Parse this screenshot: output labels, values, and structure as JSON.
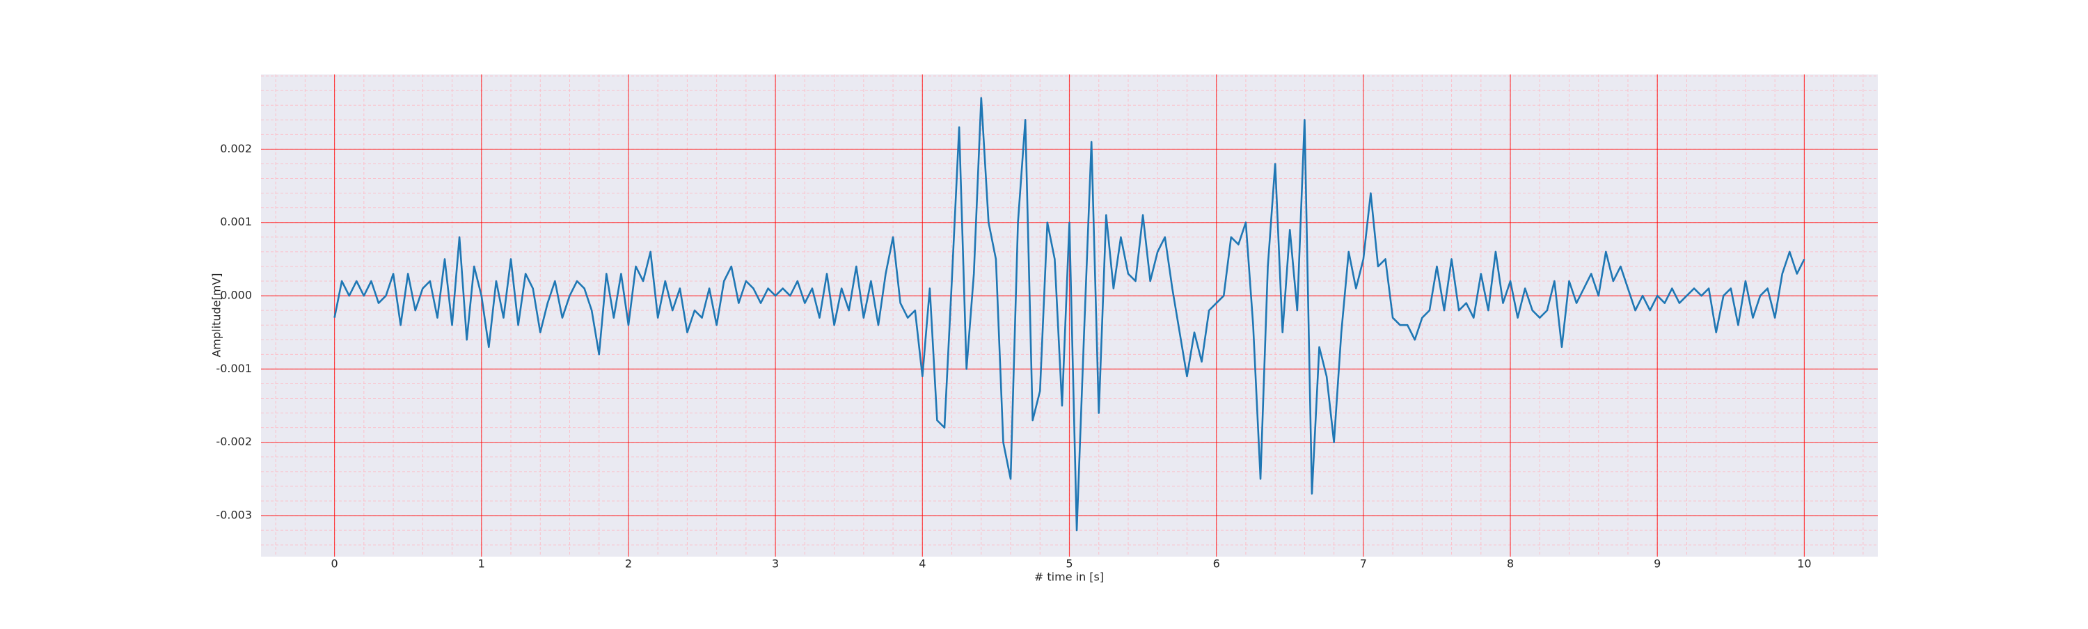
{
  "chart_data": {
    "type": "line",
    "xlabel": "# time in [s]",
    "ylabel": "Amplitude[mV]",
    "color": "#1f77b4",
    "grid": true,
    "minor_grid": true,
    "xlim": [
      -0.5,
      10.5
    ],
    "ylim": [
      -0.00356,
      0.00302
    ],
    "xticks": [
      0,
      1,
      2,
      3,
      4,
      5,
      6,
      7,
      8,
      9,
      10
    ],
    "yticks": [
      -0.003,
      -0.002,
      -0.001,
      {
        "value": 0,
        "label": "0.000"
      },
      0.001,
      0.002
    ],
    "x": [
      0,
      0.05,
      0.1,
      0.15,
      0.2,
      0.25,
      0.3,
      0.35,
      0.4,
      0.45,
      0.5,
      0.55,
      0.6,
      0.65,
      0.7,
      0.75,
      0.8,
      0.85,
      0.9,
      0.95,
      1,
      1.05,
      1.1,
      1.15,
      1.2,
      1.25,
      1.3,
      1.35,
      1.4,
      1.45,
      1.5,
      1.55,
      1.6,
      1.65,
      1.7,
      1.75,
      1.8,
      1.85,
      1.9,
      1.95,
      2,
      2.05,
      2.1,
      2.15,
      2.2,
      2.25,
      2.3,
      2.35,
      2.4,
      2.45,
      2.5,
      2.55,
      2.6,
      2.65,
      2.7,
      2.75,
      2.8,
      2.85,
      2.9,
      2.95,
      3,
      3.05,
      3.1,
      3.15,
      3.2,
      3.25,
      3.3,
      3.35,
      3.4,
      3.45,
      3.5,
      3.55,
      3.6,
      3.65,
      3.7,
      3.75,
      3.8,
      3.85,
      3.9,
      3.95,
      4,
      4.05,
      4.1,
      4.15,
      4.2,
      4.25,
      4.3,
      4.35,
      4.4,
      4.45,
      4.5,
      4.55,
      4.6,
      4.65,
      4.7,
      4.75,
      4.8,
      4.85,
      4.9,
      4.95,
      5,
      5.05,
      5.1,
      5.15,
      5.2,
      5.25,
      5.3,
      5.35,
      5.4,
      5.45,
      5.5,
      5.55,
      5.6,
      5.65,
      5.7,
      5.75,
      5.8,
      5.85,
      5.9,
      5.95,
      6,
      6.05,
      6.1,
      6.15,
      6.2,
      6.25,
      6.3,
      6.35,
      6.4,
      6.45,
      6.5,
      6.55,
      6.6,
      6.65,
      6.7,
      6.75,
      6.8,
      6.85,
      6.9,
      6.95,
      7,
      7.05,
      7.1,
      7.15,
      7.2,
      7.25,
      7.3,
      7.35,
      7.4,
      7.45,
      7.5,
      7.55,
      7.6,
      7.65,
      7.7,
      7.75,
      7.8,
      7.85,
      7.9,
      7.95,
      8,
      8.05,
      8.1,
      8.15,
      8.2,
      8.25,
      8.3,
      8.35,
      8.4,
      8.45,
      8.5,
      8.55,
      8.6,
      8.65,
      8.7,
      8.75,
      8.8,
      8.85,
      8.9,
      8.95,
      9,
      9.05,
      9.1,
      9.15,
      9.2,
      9.25,
      9.3,
      9.35,
      9.4,
      9.45,
      9.5,
      9.55,
      9.6,
      9.65,
      9.7,
      9.75,
      9.8,
      9.85,
      9.9,
      9.95,
      10
    ],
    "values": [
      -0.0003,
      0.0002,
      0,
      0.0002,
      0,
      0.0002,
      -0.0001,
      0,
      0.0003,
      -0.0004,
      0.0003,
      -0.0002,
      0.0001,
      0.0002,
      -0.0003,
      0.0005,
      -0.0004,
      0.0008,
      -0.0006,
      0.0004,
      0,
      -0.0007,
      0.0002,
      -0.0003,
      0.0005,
      -0.0004,
      0.0003,
      0.0001,
      -0.0005,
      -0.0001,
      0.0002,
      -0.0003,
      0,
      0.0002,
      0.0001,
      -0.0002,
      -0.0008,
      0.0003,
      -0.0003,
      0.0003,
      -0.0004,
      0.0004,
      0.0002,
      0.0006,
      -0.0003,
      0.0002,
      -0.0002,
      0.0001,
      -0.0005,
      -0.0002,
      -0.0003,
      0.0001,
      -0.0004,
      0.0002,
      0.0004,
      -0.0001,
      0.0002,
      0.0001,
      -0.0001,
      0.0001,
      0,
      0.0001,
      0,
      0.0002,
      -0.0001,
      0.0001,
      -0.0003,
      0.0003,
      -0.0004,
      0.0001,
      -0.0002,
      0.0004,
      -0.0003,
      0.0002,
      -0.0004,
      0.0003,
      0.0008,
      -0.0001,
      -0.0003,
      -0.0002,
      -0.0011,
      0.0001,
      -0.0017,
      -0.0018,
      0.0002,
      0.0023,
      -0.001,
      0.0003,
      0.0027,
      0.001,
      0.0005,
      -0.002,
      -0.0025,
      0.001,
      0.0024,
      -0.0017,
      -0.0013,
      0.001,
      0.0005,
      -0.0015,
      0.001,
      -0.0032,
      -0.0005,
      0.0021,
      -0.0016,
      0.0011,
      0.0001,
      0.0008,
      0.0003,
      0.0002,
      0.0011,
      0.0002,
      0.0006,
      0.0008,
      0.0001,
      -0.0005,
      -0.0011,
      -0.0005,
      -0.0009,
      -0.0002,
      -0.0001,
      0,
      0.0008,
      0.0007,
      0.001,
      -0.0004,
      -0.0025,
      0.0004,
      0.0018,
      -0.0005,
      0.0009,
      -0.0002,
      0.0024,
      -0.0027,
      -0.0007,
      -0.0011,
      -0.002,
      -0.0005,
      0.0006,
      0.0001,
      0.0005,
      0.0014,
      0.0004,
      0.0005,
      -0.0003,
      -0.0004,
      -0.0004,
      -0.0006,
      -0.0003,
      -0.0002,
      0.0004,
      -0.0002,
      0.0005,
      -0.0002,
      -0.0001,
      -0.0003,
      0.0003,
      -0.0002,
      0.0006,
      -0.0001,
      0.0002,
      -0.0003,
      0.0001,
      -0.0002,
      -0.0003,
      -0.0002,
      0.0002,
      -0.0007,
      0.0002,
      -0.0001,
      0.0001,
      0.0003,
      0,
      0.0006,
      0.0002,
      0.0004,
      0.0001,
      -0.0002,
      0,
      -0.0002,
      0,
      -0.0001,
      0.0001,
      -0.0001,
      0,
      0.0001,
      0,
      0.0001,
      -0.0005,
      0,
      0.0001,
      -0.0004,
      0.0002,
      -0.0003,
      0,
      0.0001,
      -0.0003,
      0.0003,
      0.0006,
      0.0003,
      0.0005
    ]
  }
}
